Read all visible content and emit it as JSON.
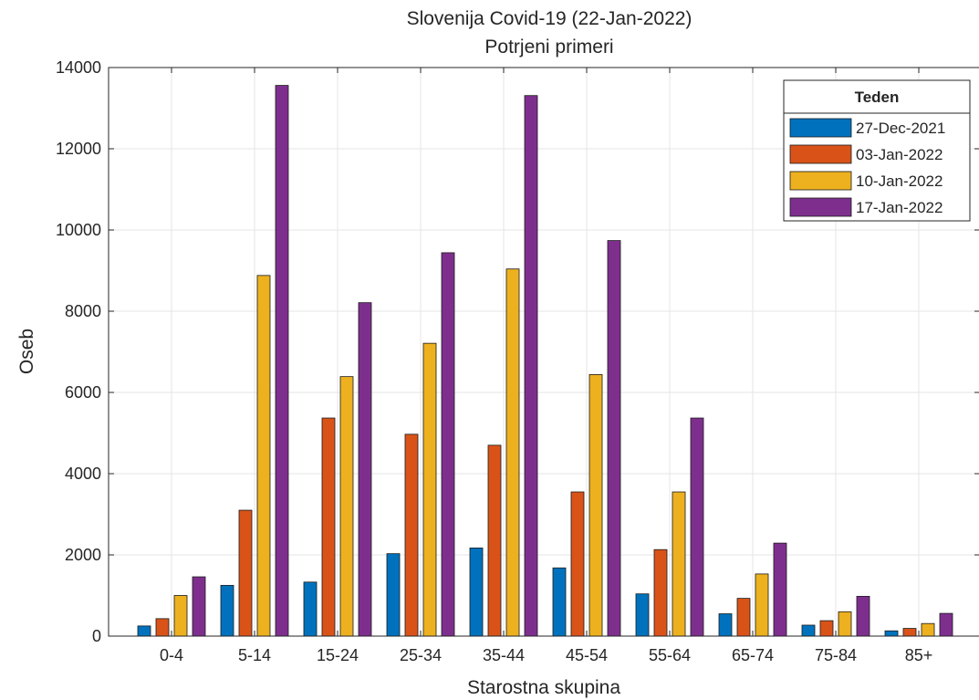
{
  "chart_data": {
    "type": "bar",
    "title": "Slovenija Covid-19 (22-Jan-2022)",
    "subtitle": "Potrjeni primeri",
    "xlabel": "Starostna skupina",
    "ylabel": "Oseb",
    "ylim": [
      0,
      14000
    ],
    "yticks": [
      0,
      2000,
      4000,
      6000,
      8000,
      10000,
      12000,
      14000
    ],
    "grid": true,
    "legend_title": "Teden",
    "legend_position": "top-right",
    "categories": [
      "0-4",
      "5-14",
      "15-24",
      "25-34",
      "35-44",
      "45-54",
      "55-64",
      "65-74",
      "75-84",
      "85+"
    ],
    "series": [
      {
        "name": "27-Dec-2021",
        "color": "#0072BD",
        "values": [
          250,
          1250,
          1330,
          2030,
          2170,
          1680,
          1040,
          550,
          270,
          130
        ]
      },
      {
        "name": "03-Jan-2022",
        "color": "#D95319",
        "values": [
          430,
          3100,
          5370,
          4970,
          4700,
          3550,
          2130,
          930,
          380,
          190
        ]
      },
      {
        "name": "10-Jan-2022",
        "color": "#EDB120",
        "values": [
          1000,
          8880,
          6390,
          7210,
          9040,
          6440,
          3550,
          1530,
          600,
          310
        ]
      },
      {
        "name": "17-Jan-2022",
        "color": "#7E2F8E",
        "values": [
          1460,
          13560,
          8210,
          9440,
          13310,
          9740,
          5370,
          2290,
          980,
          560
        ]
      }
    ]
  }
}
